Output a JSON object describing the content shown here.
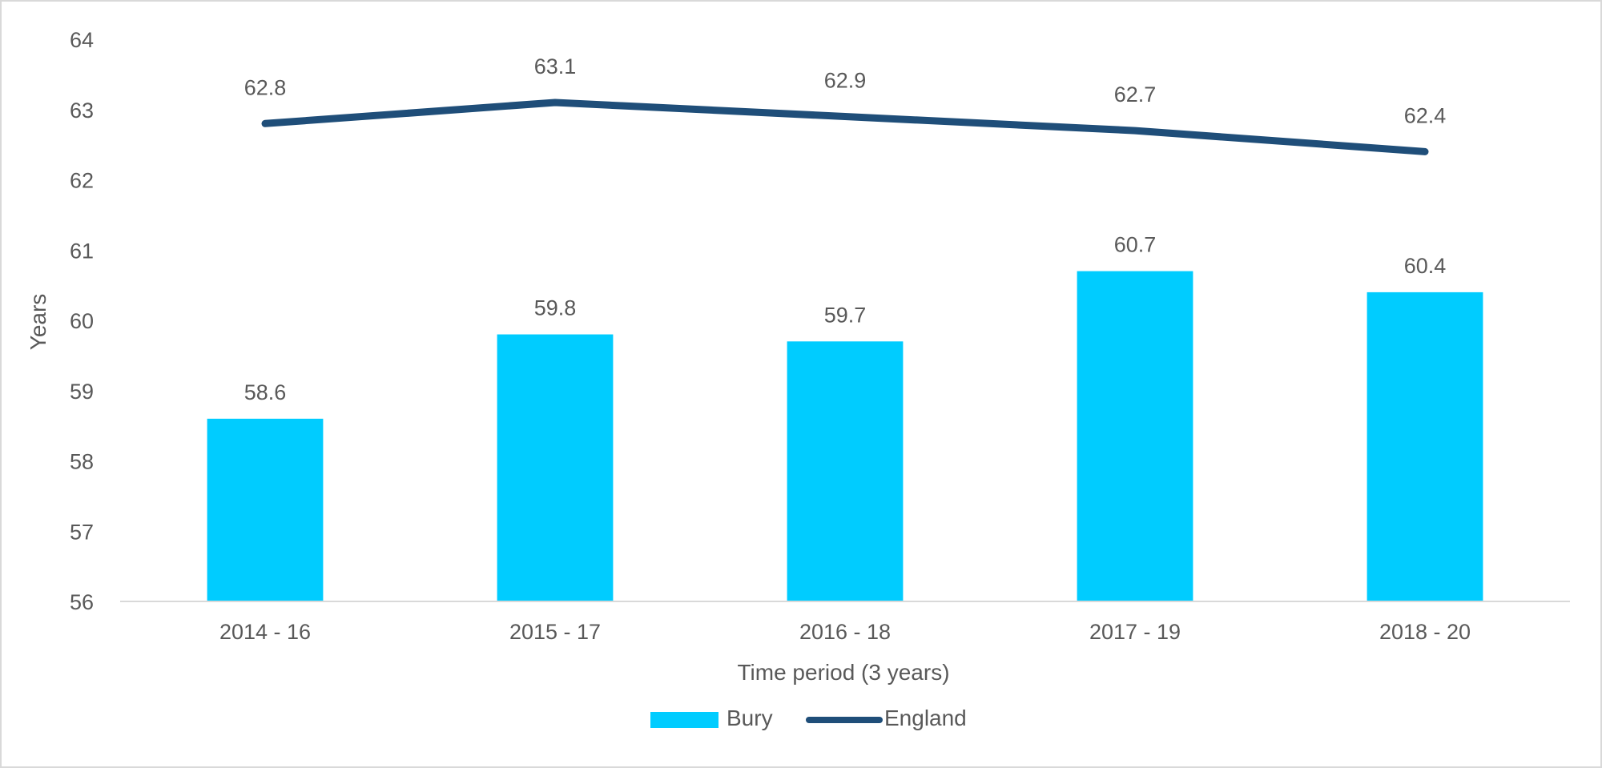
{
  "chart_data": {
    "type": "bar",
    "title": "",
    "xlabel": "Time period (3 years)",
    "ylabel": "Years",
    "ylim": [
      56,
      64
    ],
    "yticks": [
      56,
      57,
      58,
      59,
      60,
      61,
      62,
      63,
      64
    ],
    "categories": [
      "2014 - 16",
      "2015 - 17",
      "2016 - 18",
      "2017 - 19",
      "2018 - 20"
    ],
    "series": [
      {
        "name": "Bury",
        "kind": "bar",
        "color": "#00ccff",
        "values": [
          58.6,
          59.8,
          59.7,
          60.7,
          60.4
        ]
      },
      {
        "name": "England",
        "kind": "line",
        "color": "#1f4e79",
        "values": [
          62.8,
          63.1,
          62.9,
          62.7,
          62.4
        ]
      }
    ],
    "legend_position": "bottom",
    "grid": false
  }
}
